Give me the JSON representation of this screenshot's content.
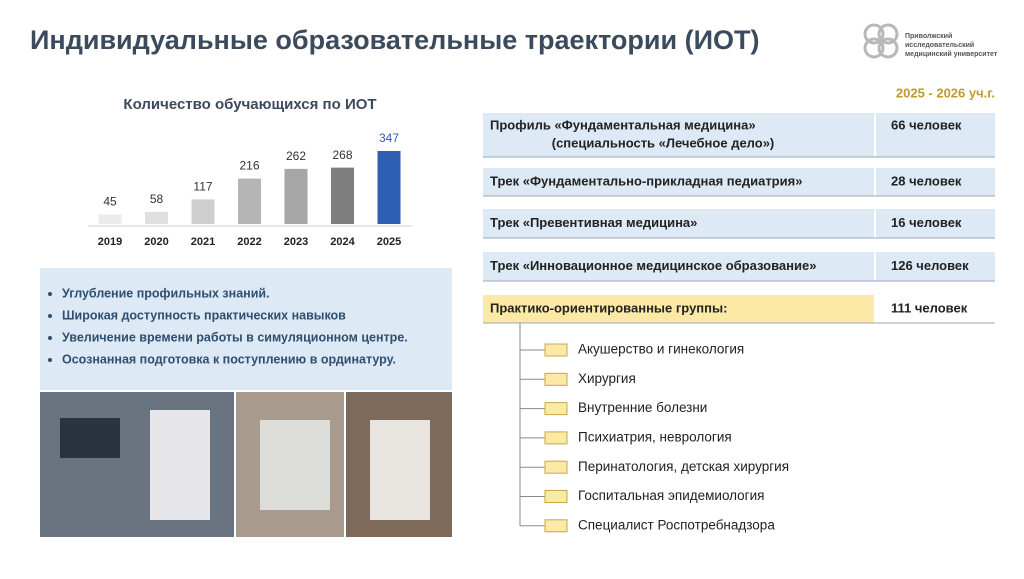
{
  "title": "Индивидуальные образовательные траектории (ИОТ)",
  "logo": {
    "lines": [
      "Приволжский",
      "исследовательский",
      "медицинский университет"
    ]
  },
  "chart_data": {
    "type": "bar",
    "title": "Количество обучающихся по ИОТ",
    "categories": [
      "2019",
      "2020",
      "2021",
      "2022",
      "2023",
      "2024",
      "2025"
    ],
    "values": [
      45,
      58,
      117,
      216,
      262,
      268,
      347
    ],
    "colors": [
      "#ebebeb",
      "#e0e0e0",
      "#cfcfcf",
      "#b5b5b5",
      "#a6a6a6",
      "#7f7f7f",
      "#2e5fb3"
    ]
  },
  "bullets": [
    "Углубление профильных знаний.",
    "Широкая доступность практических навыков",
    "Увеличение времени работы в симуляционном центре.",
    "Осознанная подготовка к поступлению в ординатуру."
  ],
  "period": "2025 - 2026 уч.г.",
  "table": {
    "rows": [
      {
        "label": [
          "Профиль «Фундаментальная медицина»",
          "(специальность «Лечебное дело»)"
        ],
        "value": "66 человек"
      },
      {
        "label": [
          "Трек «Фундаментально-прикладная педиатрия»"
        ],
        "value": "28 человек"
      },
      {
        "label": [
          "Трек «Превентивная медицина»"
        ],
        "value": "16 человек"
      },
      {
        "label": [
          "Трек «Инновационное медицинское образование»"
        ],
        "value": "126 человек"
      },
      {
        "label": [
          "Практико-ориентированные группы:"
        ],
        "value": "111 человек"
      }
    ]
  },
  "groups": [
    "Акушерство и гинекология",
    "Хирургия",
    "Внутренние болезни",
    "Психиатрия, неврология",
    "Перинатология, детская хирургия",
    "Госпитальная эпидемиология",
    "Специалист Роспотребнадзора"
  ]
}
